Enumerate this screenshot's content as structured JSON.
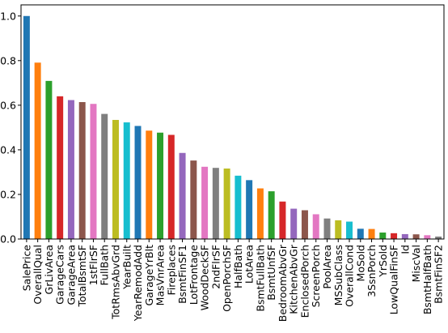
{
  "chart_data": {
    "type": "bar",
    "title": "",
    "xlabel": "",
    "ylabel": "",
    "ylim": [
      0,
      1.05
    ],
    "yticks": [
      "0.0",
      "0.2",
      "0.4",
      "0.6",
      "0.8",
      "1.0"
    ],
    "grid": false,
    "legend": "none",
    "colors": [
      "#1f77b4",
      "#ff7f0e",
      "#2ca02c",
      "#d62728",
      "#9467bd",
      "#8c564b",
      "#e377c2",
      "#7f7f7f",
      "#bcbd22",
      "#17becf"
    ],
    "categories": [
      "SalePrice",
      "OverallQual",
      "GrLivArea",
      "GarageCars",
      "GarageArea",
      "TotalBsmtSF",
      "1stFlrSF",
      "FullBath",
      "TotRmsAbvGrd",
      "YearBuilt",
      "YearRemodAdd",
      "GarageYrBlt",
      "MasVnrArea",
      "Fireplaces",
      "BsmtFinSF1",
      "LotFrontage",
      "WoodDeckSF",
      "2ndFlrSF",
      "OpenPorchSF",
      "HalfBath",
      "LotArea",
      "BsmtFullBath",
      "BsmtUnfSF",
      "BedroomAbvGr",
      "KitchenAbvGr",
      "EnclosedPorch",
      "ScreenPorch",
      "PoolArea",
      "MSSubClass",
      "OverallCond",
      "MoSold",
      "3SsnPorch",
      "YrSold",
      "LowQualFinSF",
      "Id",
      "MiscVal",
      "BsmtHalfBath",
      "BsmtFinSF2"
    ],
    "values": [
      1.0,
      0.791,
      0.709,
      0.64,
      0.623,
      0.614,
      0.606,
      0.561,
      0.534,
      0.523,
      0.507,
      0.486,
      0.477,
      0.467,
      0.386,
      0.352,
      0.324,
      0.319,
      0.316,
      0.284,
      0.264,
      0.227,
      0.214,
      0.168,
      0.136,
      0.129,
      0.111,
      0.092,
      0.084,
      0.078,
      0.046,
      0.045,
      0.029,
      0.026,
      0.022,
      0.021,
      0.017,
      0.011
    ]
  }
}
